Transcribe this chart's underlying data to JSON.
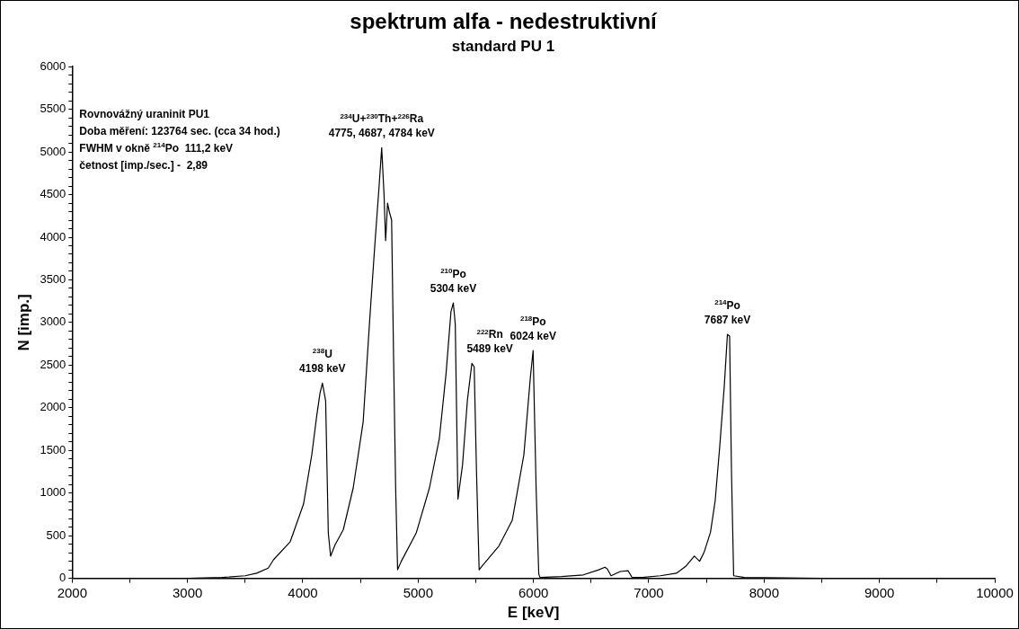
{
  "chart_data": {
    "type": "line",
    "title": "spektrum alfa - nedestruktivní",
    "subtitle": "standard PU 1",
    "xlabel": "E [keV]",
    "ylabel": "N [imp.]",
    "xlim": [
      2000,
      10000
    ],
    "xticks": [
      2000,
      {
        "value": 2500,
        "label": null
      },
      3000,
      {
        "value": 3500,
        "label": null
      },
      4000,
      {
        "value": 4500,
        "label": null
      },
      5000,
      {
        "value": 5500,
        "label": null
      },
      6000,
      {
        "value": 6500,
        "label": null
      },
      7000,
      {
        "value": 7500,
        "label": null
      },
      8000,
      {
        "value": 8500,
        "label": null
      },
      9000,
      {
        "value": 9500,
        "label": null
      },
      10000
    ],
    "ylim": [
      0,
      6000
    ],
    "yticks": [
      0,
      {
        "value": 100,
        "label": null
      },
      {
        "value": 200,
        "label": null
      },
      {
        "value": 300,
        "label": null
      },
      {
        "value": 400,
        "label": null
      },
      500,
      {
        "value": 600,
        "label": null
      },
      {
        "value": 700,
        "label": null
      },
      {
        "value": 800,
        "label": null
      },
      {
        "value": 900,
        "label": null
      },
      1000,
      {
        "value": 1100,
        "label": null
      },
      {
        "value": 1200,
        "label": null
      },
      {
        "value": 1300,
        "label": null
      },
      {
        "value": 1400,
        "label": null
      },
      1500,
      {
        "value": 1600,
        "label": null
      },
      {
        "value": 1700,
        "label": null
      },
      {
        "value": 1800,
        "label": null
      },
      {
        "value": 1900,
        "label": null
      },
      2000,
      {
        "value": 2100,
        "label": null
      },
      {
        "value": 2200,
        "label": null
      },
      {
        "value": 2300,
        "label": null
      },
      {
        "value": 2400,
        "label": null
      },
      2500,
      {
        "value": 2600,
        "label": null
      },
      {
        "value": 2700,
        "label": null
      },
      {
        "value": 2800,
        "label": null
      },
      {
        "value": 2900,
        "label": null
      },
      3000,
      {
        "value": 3100,
        "label": null
      },
      {
        "value": 3200,
        "label": null
      },
      {
        "value": 3300,
        "label": null
      },
      {
        "value": 3400,
        "label": null
      },
      3500,
      {
        "value": 3600,
        "label": null
      },
      {
        "value": 3700,
        "label": null
      },
      {
        "value": 3800,
        "label": null
      },
      {
        "value": 3900,
        "label": null
      },
      4000,
      {
        "value": 4100,
        "label": null
      },
      {
        "value": 4200,
        "label": null
      },
      {
        "value": 4300,
        "label": null
      },
      {
        "value": 4400,
        "label": null
      },
      4500,
      {
        "value": 4600,
        "label": null
      },
      {
        "value": 4700,
        "label": null
      },
      {
        "value": 4800,
        "label": null
      },
      {
        "value": 4900,
        "label": null
      },
      5000,
      {
        "value": 5100,
        "label": null
      },
      {
        "value": 5200,
        "label": null
      },
      {
        "value": 5300,
        "label": null
      },
      {
        "value": 5400,
        "label": null
      },
      5500,
      {
        "value": 5600,
        "label": null
      },
      {
        "value": 5700,
        "label": null
      },
      {
        "value": 5800,
        "label": null
      },
      {
        "value": 5900,
        "label": null
      },
      6000
    ],
    "grid": false,
    "legend": false,
    "marker": "none",
    "line_style": "solid",
    "series": [
      {
        "color": "#000000",
        "x": [
          2000,
          2500,
          3000,
          3300,
          3500,
          3600,
          3700,
          3747,
          3891,
          4006,
          4078,
          4121,
          4149,
          4170,
          4198,
          4221,
          4241,
          4279,
          4351,
          4437,
          4523,
          4581,
          4624,
          4661,
          4684,
          4704,
          4718,
          4735,
          4750,
          4770,
          4787,
          4805,
          4822,
          4854,
          4983,
          5098,
          5184,
          5242,
          5285,
          5305,
          5322,
          5345,
          5385,
          5428,
          5466,
          5486,
          5506,
          5529,
          5558,
          5701,
          5816,
          5917,
          5974,
          5997,
          6023,
          6046,
          6057,
          6244,
          6432,
          6566,
          6620,
          6641,
          6673,
          6753,
          6820,
          6855,
          6941,
          7101,
          7240,
          7320,
          7395,
          7441,
          7481,
          7535,
          7575,
          7615,
          7655,
          7682,
          7701,
          7717,
          7736,
          7830,
          8500,
          10000
        ],
        "values": [
          0,
          0,
          0,
          10,
          30,
          60,
          120,
          220,
          430,
          870,
          1450,
          1910,
          2170,
          2290,
          2080,
          530,
          260,
          390,
          570,
          1060,
          1830,
          3050,
          3900,
          4590,
          5050,
          4510,
          3960,
          4400,
          4300,
          4200,
          2600,
          1060,
          100,
          200,
          530,
          1060,
          1640,
          2400,
          3130,
          3230,
          2980,
          930,
          1330,
          2100,
          2520,
          2480,
          1260,
          100,
          150,
          380,
          680,
          1450,
          2370,
          2670,
          1060,
          50,
          10,
          20,
          40,
          100,
          130,
          110,
          30,
          80,
          90,
          10,
          10,
          30,
          60,
          140,
          260,
          200,
          310,
          540,
          900,
          1540,
          2260,
          2860,
          2840,
          1260,
          30,
          10,
          0,
          0
        ]
      }
    ],
    "annotations": [
      "Rovnovážný uraninit PU1",
      "Doba měření: 123764 sec. (cca 34 hod.)",
      "FWHM v okně $^{214}$Po  111,2 keV",
      "četnost [imp./sec.] -  2,89",
      {
        "text": "$^{238}$U\n4198 keV",
        "x": 4170,
        "y": 2290
      },
      {
        "text": "$^{234}$U+$^{230}$Th+$^{226}$Ra\n4775, 4687, 4784 keV",
        "x": 4684,
        "y": 5050
      },
      {
        "text": "$^{210}$Po\n5304 keV",
        "x": 5305,
        "y": 3230
      },
      {
        "text": "$^{222}$Rn\n5489 keV",
        "x": 5466,
        "y": 2520
      },
      {
        "text": "$^{218}$Po\n6024 keV",
        "x": 5997,
        "y": 2670
      },
      {
        "text": "$^{214}$Po\n7687 keV",
        "x": 7682,
        "y": 2860
      }
    ]
  }
}
